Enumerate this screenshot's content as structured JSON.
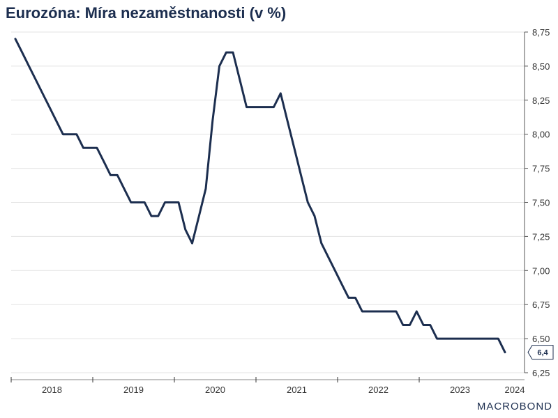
{
  "chart_data": {
    "type": "line",
    "title": "Eurozóna: Míra nezaměstnanosti (v %)",
    "ylim": [
      6.25,
      8.75
    ],
    "y_ticks": [
      6.25,
      6.5,
      6.75,
      7.0,
      7.25,
      7.5,
      7.75,
      8.0,
      8.25,
      8.5,
      8.75
    ],
    "y_tick_labels": [
      "6,25",
      "6,50",
      "6,75",
      "7,00",
      "7,25",
      "7,50",
      "7,75",
      "8,00",
      "8,25",
      "8,50",
      "8,75"
    ],
    "x_tick_labels": [
      "2018",
      "2019",
      "2020",
      "2021",
      "2022",
      "2023",
      "2024"
    ],
    "y_axis_position": "right",
    "grid": true,
    "series": [
      {
        "color": "#1c2e4f",
        "x": [
          "2018-01",
          "2018-02",
          "2018-03",
          "2018-04",
          "2018-05",
          "2018-06",
          "2018-07",
          "2018-08",
          "2018-09",
          "2018-10",
          "2018-11",
          "2018-12",
          "2019-01",
          "2019-02",
          "2019-03",
          "2019-04",
          "2019-05",
          "2019-06",
          "2019-07",
          "2019-08",
          "2019-09",
          "2019-10",
          "2019-11",
          "2019-12",
          "2020-01",
          "2020-02",
          "2020-03",
          "2020-04",
          "2020-05",
          "2020-06",
          "2020-07",
          "2020-08",
          "2020-09",
          "2020-10",
          "2020-11",
          "2020-12",
          "2021-01",
          "2021-02",
          "2021-03",
          "2021-04",
          "2021-05",
          "2021-06",
          "2021-07",
          "2021-08",
          "2021-09",
          "2021-10",
          "2021-11",
          "2021-12",
          "2022-01",
          "2022-02",
          "2022-03",
          "2022-04",
          "2022-05",
          "2022-06",
          "2022-07",
          "2022-08",
          "2022-09",
          "2022-10",
          "2022-11",
          "2022-12",
          "2023-01",
          "2023-02",
          "2023-03",
          "2023-04",
          "2023-05",
          "2023-06",
          "2023-07",
          "2023-08",
          "2023-09",
          "2023-10",
          "2023-11",
          "2023-12",
          "2024-01"
        ],
        "values": [
          8.7,
          8.6,
          8.5,
          8.4,
          8.3,
          8.2,
          8.1,
          8.0,
          8.0,
          8.0,
          7.9,
          7.9,
          7.9,
          7.8,
          7.7,
          7.7,
          7.6,
          7.5,
          7.5,
          7.5,
          7.4,
          7.4,
          7.5,
          7.5,
          7.5,
          7.3,
          7.2,
          7.4,
          7.6,
          8.1,
          8.5,
          8.6,
          8.6,
          8.4,
          8.2,
          8.2,
          8.2,
          8.2,
          8.2,
          8.3,
          8.1,
          7.9,
          7.7,
          7.5,
          7.4,
          7.2,
          7.1,
          7.0,
          6.9,
          6.8,
          6.8,
          6.7,
          6.7,
          6.7,
          6.7,
          6.7,
          6.7,
          6.6,
          6.6,
          6.7,
          6.6,
          6.6,
          6.5,
          6.5,
          6.5,
          6.5,
          6.5,
          6.5,
          6.5,
          6.5,
          6.5,
          6.5,
          6.4
        ]
      }
    ],
    "last_value_label": "6,4"
  },
  "brand": {
    "logo": "MACROBOND"
  }
}
